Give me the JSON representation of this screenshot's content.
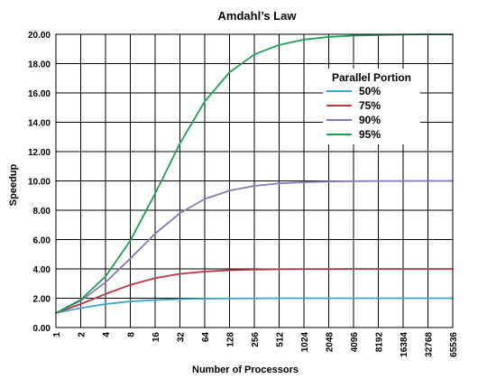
{
  "chart_data": {
    "type": "line",
    "title": "Amdahl’s Law",
    "xlabel": "Number of Processors",
    "ylabel": "Speedup",
    "x_scale": "log2",
    "x": [
      1,
      2,
      4,
      8,
      16,
      32,
      64,
      128,
      256,
      512,
      1024,
      2048,
      4096,
      8192,
      16384,
      32768,
      65536
    ],
    "x_tick_labels": [
      "1",
      "2",
      "4",
      "8",
      "16",
      "32",
      "64",
      "128",
      "256",
      "512",
      "1024",
      "2048",
      "4096",
      "8192",
      "16384",
      "32768",
      "65536"
    ],
    "ylim": [
      0,
      20
    ],
    "y_ticks": [
      0,
      2,
      4,
      6,
      8,
      10,
      12,
      14,
      16,
      18,
      20
    ],
    "y_tick_labels": [
      "0.00",
      "2.00",
      "4.00",
      "6.00",
      "8.00",
      "10.00",
      "12.00",
      "14.00",
      "16.00",
      "18.00",
      "20.00"
    ],
    "grid": true,
    "legend": {
      "title": "Parallel Portion",
      "placement": "right"
    },
    "series": [
      {
        "name": "50%",
        "color": "#3ea6c6",
        "values": [
          1.0,
          1.33,
          1.6,
          1.78,
          1.88,
          1.94,
          1.97,
          1.98,
          1.99,
          2.0,
          2.0,
          2.0,
          2.0,
          2.0,
          2.0,
          2.0,
          2.0
        ]
      },
      {
        "name": "75%",
        "color": "#b23a48",
        "values": [
          1.0,
          1.6,
          2.29,
          2.91,
          3.37,
          3.66,
          3.82,
          3.91,
          3.95,
          3.98,
          3.99,
          3.99,
          4.0,
          4.0,
          4.0,
          4.0,
          4.0
        ]
      },
      {
        "name": "90%",
        "color": "#8a78b0",
        "values": [
          1.0,
          1.82,
          3.08,
          4.71,
          6.4,
          7.8,
          8.77,
          9.34,
          9.66,
          9.83,
          9.91,
          9.96,
          9.98,
          9.99,
          9.99,
          10.0,
          10.0
        ]
      },
      {
        "name": "95%",
        "color": "#1f9e5a",
        "values": [
          1.0,
          1.9,
          3.48,
          5.93,
          9.14,
          12.55,
          15.42,
          17.41,
          18.62,
          19.28,
          19.64,
          19.82,
          19.91,
          19.95,
          19.98,
          19.99,
          19.99
        ]
      }
    ]
  }
}
